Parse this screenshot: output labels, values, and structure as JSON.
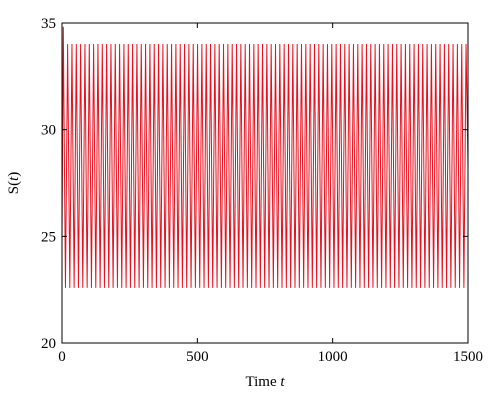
{
  "chart_data": {
    "type": "line",
    "title": "",
    "xlabel_prefix": "Time ",
    "xlabel_var": "t",
    "ylabel_fn": "S(",
    "ylabel_var": "t",
    "ylabel_close": ")",
    "xlim": [
      0,
      1500
    ],
    "ylim": [
      20,
      35
    ],
    "xticks": [
      0,
      500,
      1000,
      1500
    ],
    "yticks": [
      20,
      25,
      30,
      35
    ],
    "xtick_labels": [
      "0",
      "500",
      "1000",
      "1500"
    ],
    "ytick_labels": [
      "20",
      "25",
      "30",
      "35"
    ],
    "grid": false,
    "series": [
      {
        "color": "#e8101e",
        "oscillation": {
          "start_value": 25.0,
          "first_peak": 34.8,
          "peak": 34.0,
          "trough": 22.6,
          "period": 16.0,
          "t_start": 0,
          "t_end": 1500
        }
      }
    ]
  }
}
